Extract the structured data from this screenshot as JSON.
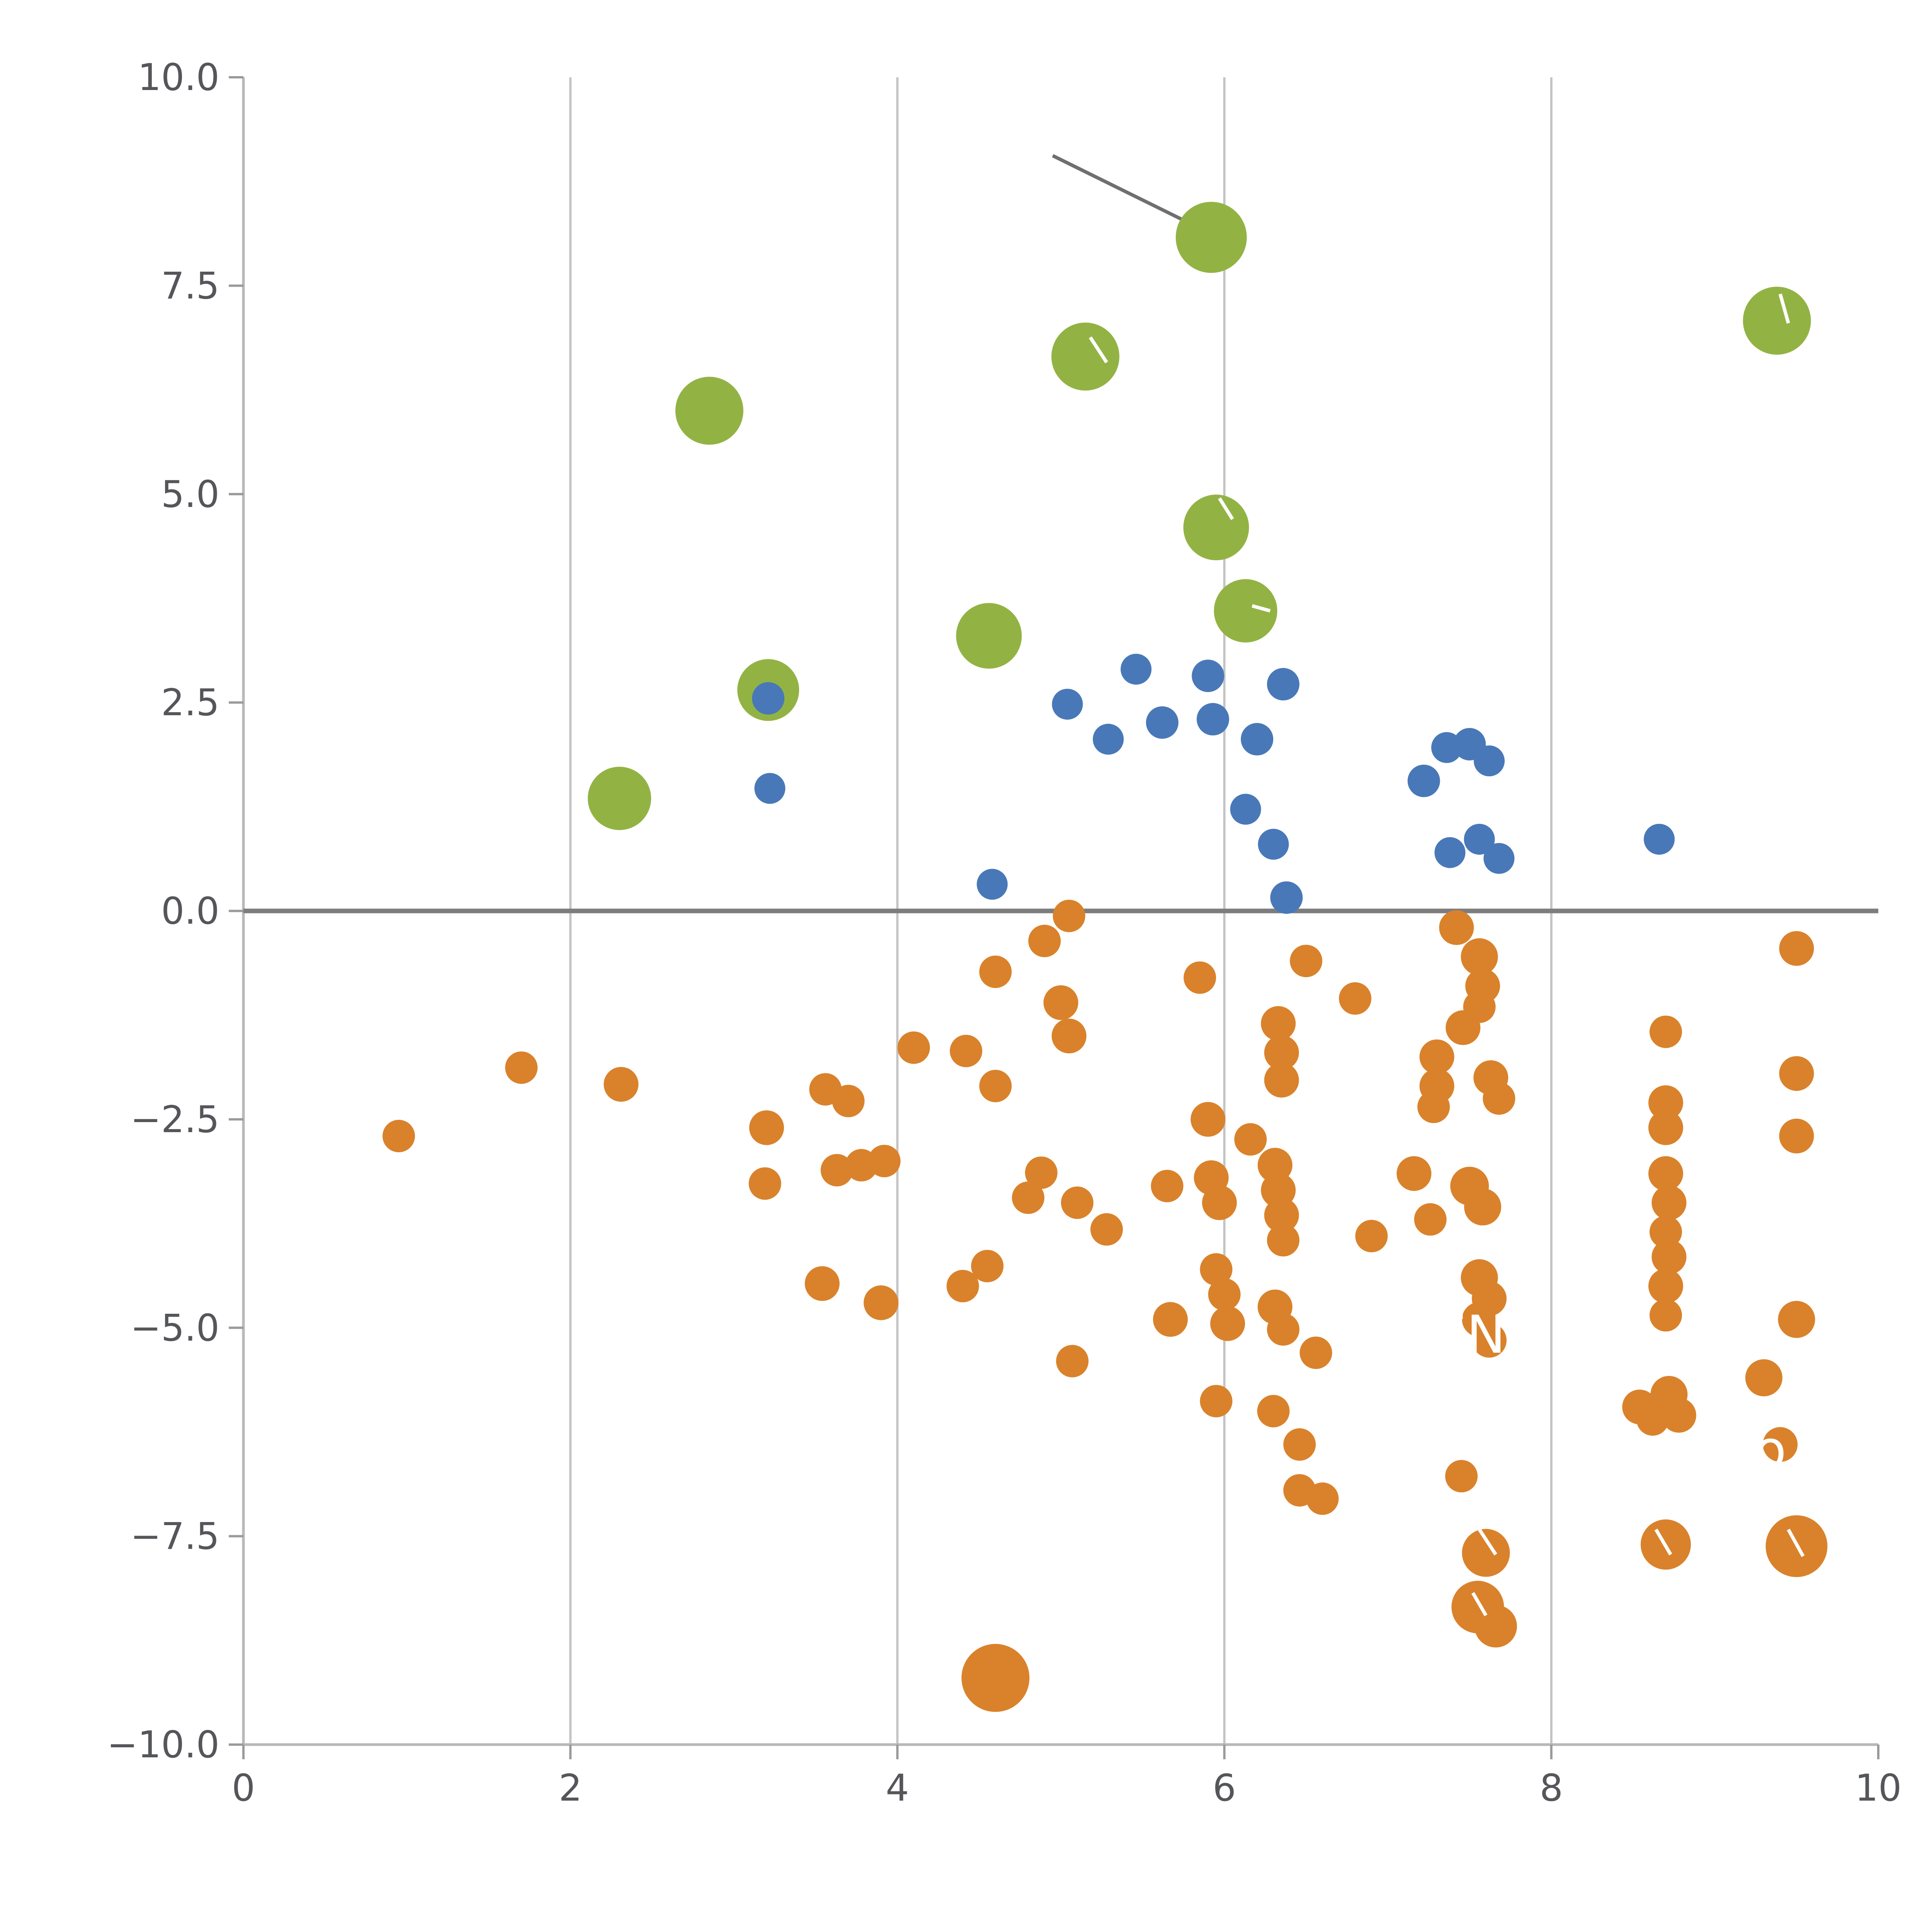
{
  "figure": {
    "background": "#ffffff"
  },
  "chart_data": {
    "type": "scatter",
    "title": "",
    "xlabel": "",
    "ylabel": "",
    "xlim": [
      0,
      10
    ],
    "ylim": [
      -10,
      10
    ],
    "grid": {
      "x_values": [
        2,
        4,
        6,
        8
      ],
      "color": "#c4c4c4",
      "width": 6
    },
    "axis": {
      "spine_color": "#b8b8b8",
      "tick_color": "#9a9a9a",
      "label_color": "#55565a",
      "tick_font_size": 95
    },
    "x_ticks": {
      "values": [
        0,
        2,
        4,
        6,
        8,
        10
      ],
      "labels": [
        "0",
        "2",
        "4",
        "6",
        "8",
        "10"
      ]
    },
    "y_ticks": {
      "values": [
        -10,
        -7.5,
        -5,
        -2.5,
        0,
        2.5,
        5,
        7.5,
        10
      ],
      "labels": [
        "−10.0",
        "−7.5",
        "−5.0",
        "−2.5",
        "0.0",
        "2.5",
        "5.0",
        "7.5",
        "10.0"
      ]
    },
    "zero_line": {
      "y": 0,
      "color": "#7d7d7d",
      "width": 12
    },
    "annotation_line": {
      "x1": 4.95,
      "y1": 9.06,
      "x2": 5.88,
      "y2": 8.16,
      "color": "#6f6f6f",
      "width": 9
    },
    "white_marks": [
      [
        5.18,
        6.88,
        5.28,
        6.58
      ],
      [
        5.97,
        4.95,
        6.05,
        4.7
      ],
      [
        6.17,
        3.66,
        6.28,
        3.6
      ],
      [
        9.4,
        7.4,
        9.45,
        7.05
      ],
      [
        7.56,
        -7.42,
        7.66,
        -7.72
      ],
      [
        8.64,
        -7.42,
        8.73,
        -7.72
      ],
      [
        9.45,
        -7.42,
        9.54,
        -7.74
      ],
      [
        7.52,
        -8.18,
        7.6,
        -8.45
      ]
    ],
    "text_annotations": [
      {
        "text": "EN",
        "x": 7.5,
        "y": -5.08,
        "color": "#ffffff",
        "size": 135
      },
      {
        "text": "o",
        "x": 9.34,
        "y": -6.46,
        "color": "#ffffff",
        "size": 135
      }
    ],
    "series": [
      {
        "name": "green",
        "color": "#92b344",
        "points": [
          [
            2.3,
            1.35,
            82
          ],
          [
            2.85,
            6.0,
            88
          ],
          [
            3.21,
            2.65,
            80
          ],
          [
            4.56,
            3.3,
            85
          ],
          [
            5.15,
            6.65,
            88
          ],
          [
            5.92,
            8.08,
            92
          ],
          [
            5.95,
            4.6,
            85
          ],
          [
            6.13,
            3.6,
            82
          ],
          [
            9.38,
            7.08,
            88
          ]
        ]
      },
      {
        "name": "blue",
        "color": "#4878b8",
        "points": [
          [
            3.21,
            2.55,
            42
          ],
          [
            3.22,
            1.47,
            40
          ],
          [
            4.58,
            0.32,
            40
          ],
          [
            5.04,
            2.48,
            40
          ],
          [
            5.29,
            2.06,
            40
          ],
          [
            5.46,
            2.9,
            40
          ],
          [
            5.62,
            2.26,
            42
          ],
          [
            5.9,
            2.82,
            42
          ],
          [
            5.93,
            2.3,
            42
          ],
          [
            6.2,
            2.06,
            42
          ],
          [
            6.13,
            1.22,
            40
          ],
          [
            6.36,
            2.72,
            42
          ],
          [
            6.3,
            0.8,
            40
          ],
          [
            6.38,
            0.16,
            42
          ],
          [
            7.22,
            1.56,
            42
          ],
          [
            7.36,
            1.96,
            40
          ],
          [
            7.5,
            2.0,
            42
          ],
          [
            7.62,
            1.8,
            40
          ],
          [
            7.38,
            0.7,
            40
          ],
          [
            7.56,
            0.86,
            40
          ],
          [
            7.68,
            0.63,
            40
          ],
          [
            8.66,
            0.86,
            40
          ]
        ]
      },
      {
        "name": "orange",
        "color": "#d9822b",
        "points": [
          [
            0.95,
            -2.7,
            42
          ],
          [
            1.7,
            -1.88,
            42
          ],
          [
            2.31,
            -2.08,
            45
          ],
          [
            3.2,
            -2.6,
            45
          ],
          [
            3.19,
            -3.27,
            42
          ],
          [
            3.56,
            -2.14,
            42
          ],
          [
            3.7,
            -2.28,
            42
          ],
          [
            3.63,
            -3.11,
            42
          ],
          [
            3.78,
            -3.05,
            42
          ],
          [
            3.92,
            -3.0,
            42
          ],
          [
            3.54,
            -4.47,
            45
          ],
          [
            3.9,
            -4.7,
            45
          ],
          [
            4.1,
            -1.64,
            42
          ],
          [
            4.42,
            -1.68,
            42
          ],
          [
            4.6,
            -0.73,
            42
          ],
          [
            4.6,
            -2.1,
            42
          ],
          [
            4.4,
            -4.5,
            42
          ],
          [
            4.55,
            -4.26,
            42
          ],
          [
            4.8,
            -3.44,
            42
          ],
          [
            4.88,
            -3.14,
            42
          ],
          [
            4.9,
            -0.36,
            42
          ],
          [
            5.05,
            -0.06,
            42
          ],
          [
            5.0,
            -1.1,
            45
          ],
          [
            5.05,
            -1.5,
            45
          ],
          [
            5.1,
            -3.5,
            42
          ],
          [
            5.28,
            -3.82,
            42
          ],
          [
            5.07,
            -5.4,
            42
          ],
          [
            5.65,
            -3.3,
            42
          ],
          [
            5.67,
            -4.9,
            45
          ],
          [
            5.85,
            -0.8,
            42
          ],
          [
            5.9,
            -2.5,
            45
          ],
          [
            5.92,
            -3.2,
            45
          ],
          [
            5.97,
            -3.5,
            45
          ],
          [
            5.95,
            -4.3,
            42
          ],
          [
            6.0,
            -4.6,
            42
          ],
          [
            6.02,
            -4.95,
            45
          ],
          [
            5.95,
            -5.88,
            42
          ],
          [
            6.16,
            -2.74,
            42
          ],
          [
            6.33,
            -1.35,
            45
          ],
          [
            6.35,
            -1.7,
            45
          ],
          [
            6.35,
            -2.03,
            45
          ],
          [
            6.31,
            -3.05,
            45
          ],
          [
            6.33,
            -3.35,
            45
          ],
          [
            6.35,
            -3.65,
            45
          ],
          [
            6.36,
            -3.95,
            42
          ],
          [
            6.31,
            -4.75,
            45
          ],
          [
            6.36,
            -5.02,
            42
          ],
          [
            6.3,
            -6.0,
            42
          ],
          [
            6.46,
            -6.4,
            42
          ],
          [
            6.5,
            -0.6,
            42
          ],
          [
            6.56,
            -5.3,
            42
          ],
          [
            6.46,
            -6.95,
            42
          ],
          [
            6.6,
            -7.05,
            42
          ],
          [
            6.8,
            -1.05,
            42
          ],
          [
            6.9,
            -3.9,
            42
          ],
          [
            7.16,
            -3.15,
            45
          ],
          [
            7.26,
            -3.7,
            42
          ],
          [
            7.3,
            -1.75,
            45
          ],
          [
            7.3,
            -2.1,
            45
          ],
          [
            7.28,
            -2.35,
            42
          ],
          [
            7.42,
            -0.2,
            45
          ],
          [
            7.46,
            -1.4,
            45
          ],
          [
            7.56,
            -0.55,
            48
          ],
          [
            7.58,
            -0.9,
            45
          ],
          [
            7.56,
            -1.15,
            42
          ],
          [
            7.5,
            -3.3,
            50
          ],
          [
            7.58,
            -3.55,
            48
          ],
          [
            7.63,
            -2.0,
            45
          ],
          [
            7.68,
            -2.25,
            42
          ],
          [
            7.56,
            -4.4,
            48
          ],
          [
            7.62,
            -4.65,
            45
          ],
          [
            7.56,
            -4.9,
            45
          ],
          [
            7.62,
            -5.15,
            45
          ],
          [
            7.45,
            -6.78,
            42
          ],
          [
            7.6,
            -7.7,
            62
          ],
          [
            7.55,
            -8.35,
            68
          ],
          [
            7.66,
            -8.58,
            55
          ],
          [
            4.6,
            -9.2,
            88
          ],
          [
            8.54,
            -5.95,
            45
          ],
          [
            8.62,
            -6.1,
            42
          ],
          [
            8.7,
            -1.45,
            42
          ],
          [
            8.7,
            -2.3,
            45
          ],
          [
            8.7,
            -2.6,
            45
          ],
          [
            8.7,
            -3.15,
            45
          ],
          [
            8.72,
            -3.5,
            45
          ],
          [
            8.7,
            -3.85,
            42
          ],
          [
            8.72,
            -4.15,
            45
          ],
          [
            8.7,
            -4.5,
            45
          ],
          [
            8.7,
            -4.85,
            42
          ],
          [
            8.72,
            -5.8,
            48
          ],
          [
            8.78,
            -6.05,
            45
          ],
          [
            8.7,
            -7.6,
            65
          ],
          [
            9.3,
            -5.6,
            48
          ],
          [
            9.4,
            -6.4,
            45
          ],
          [
            9.5,
            -0.45,
            45
          ],
          [
            9.5,
            -1.95,
            45
          ],
          [
            9.5,
            -2.7,
            45
          ],
          [
            9.5,
            -4.9,
            48
          ],
          [
            9.5,
            -7.62,
            80
          ]
        ]
      }
    ]
  }
}
